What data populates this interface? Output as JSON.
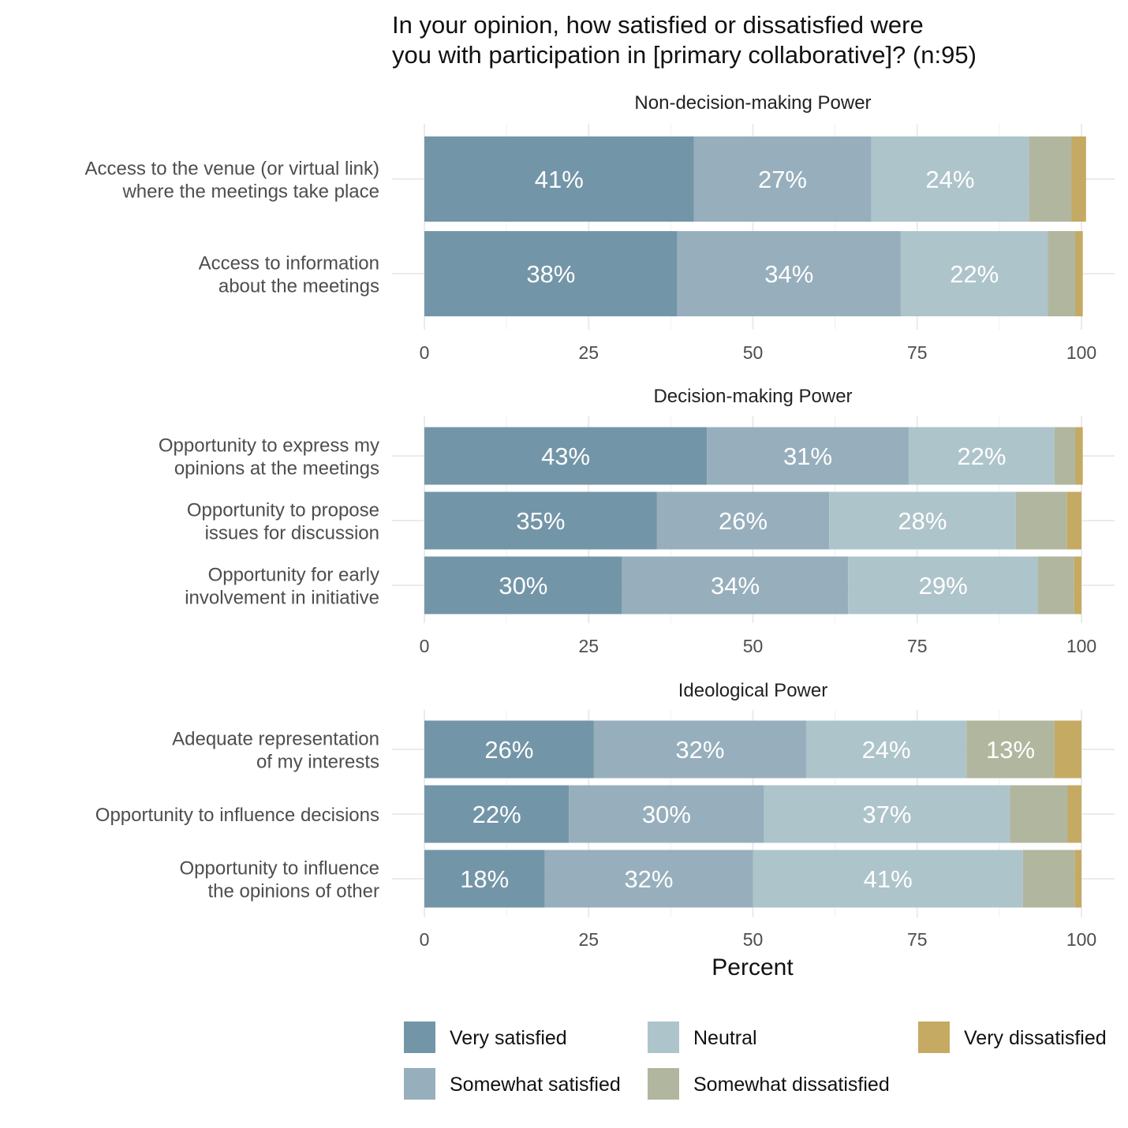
{
  "chart_data": {
    "type": "bar",
    "orientation": "horizontal",
    "stacked": true,
    "title": [
      "In your opinion, how satisfied or dissatisfied were",
      "you with participation in [primary collaborative]? (n:95)"
    ],
    "xlabel": "Percent",
    "xlim": [
      0,
      100
    ],
    "xticks": [
      "0",
      "25",
      "50",
      "75",
      "100"
    ],
    "levels": [
      "Very satisfied",
      "Somewhat satisfied",
      "Neutral",
      "Somewhat dissatisfied",
      "Very dissatisfied"
    ],
    "colors": [
      "#7395a8",
      "#97afbc",
      "#aec4cb",
      "#b1b69e",
      "#c4aa62"
    ],
    "legend": {
      "position": "bottom",
      "columns": [
        [
          "Very satisfied",
          "Somewhat satisfied"
        ],
        [
          "Neutral",
          "Somewhat dissatisfied"
        ],
        [
          "Very dissatisfied"
        ]
      ]
    },
    "facets": [
      {
        "title": "Non-decision-making Power",
        "rows": [
          {
            "label": [
              "Access to the venue (or virtual link)",
              "where the meetings take place"
            ],
            "values": [
              41,
              27,
              24,
              6.5,
              2.2
            ],
            "labels": [
              "41%",
              "27%",
              "24%",
              "",
              ""
            ]
          },
          {
            "label": [
              "Access to information",
              "about the meetings"
            ],
            "values": [
              38.5,
              34,
              22.4,
              4.2,
              1.1
            ],
            "labels": [
              "38%",
              "34%",
              "22%",
              "",
              ""
            ]
          }
        ]
      },
      {
        "title": "Decision-making Power",
        "rows": [
          {
            "label": [
              "Opportunity to express my",
              "opinions at the meetings"
            ],
            "values": [
              43,
              30.7,
              22.2,
              3.2,
              1.1
            ],
            "labels": [
              "43%",
              "31%",
              "22%",
              "",
              ""
            ]
          },
          {
            "label": [
              "Opportunity to propose",
              "issues for discussion"
            ],
            "values": [
              35.4,
              26.2,
              28.4,
              7.8,
              2.2
            ],
            "labels": [
              "35%",
              "26%",
              "28%",
              "",
              ""
            ]
          },
          {
            "label": [
              "Opportunity for early",
              "involvement in initiative"
            ],
            "values": [
              30.1,
              34.4,
              28.9,
              5.5,
              1.1
            ],
            "labels": [
              "30%",
              "34%",
              "29%",
              "",
              ""
            ]
          }
        ]
      },
      {
        "title": "Ideological Power",
        "rows": [
          {
            "label": [
              "Adequate representation",
              "of my interests"
            ],
            "values": [
              25.8,
              32.3,
              24.4,
              13.4,
              4.1
            ],
            "labels": [
              "26%",
              "32%",
              "24%",
              "13%",
              ""
            ]
          },
          {
            "label": [
              "Opportunity to influence decisions"
            ],
            "values": [
              22,
              29.7,
              37.4,
              8.8,
              2.1
            ],
            "labels": [
              "22%",
              "30%",
              "37%",
              "",
              ""
            ]
          },
          {
            "label": [
              "Opportunity to influence",
              "the opinions of other"
            ],
            "values": [
              18.3,
              31.7,
              41.1,
              7.9,
              1
            ],
            "labels": [
              "18%",
              "32%",
              "41%",
              "",
              ""
            ]
          }
        ]
      }
    ]
  }
}
